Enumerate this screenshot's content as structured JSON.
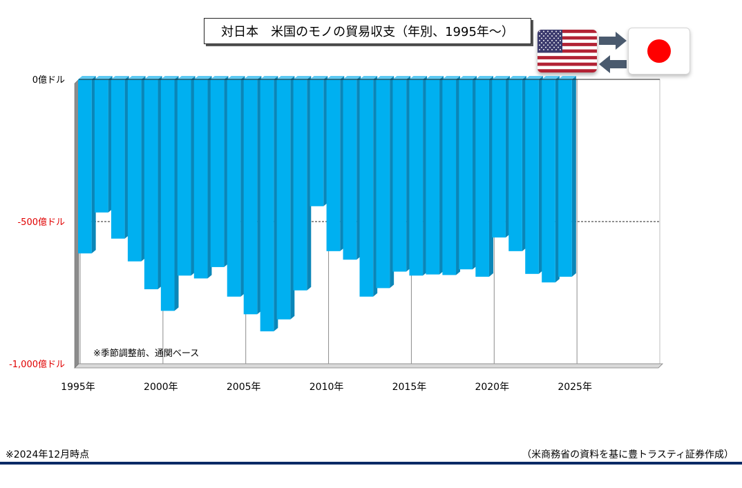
{
  "title": "対日本　米国のモノの貿易収支（年別、1995年～）",
  "chart_data": {
    "type": "bar",
    "title": "対日本　米国のモノの貿易収支（年別、1995年～）",
    "xlabel": "",
    "ylabel": "",
    "unit": "億ドル",
    "categories": [
      "1995",
      "1996",
      "1997",
      "1998",
      "1999",
      "2000",
      "2001",
      "2002",
      "2003",
      "2004",
      "2005",
      "2006",
      "2007",
      "2008",
      "2009",
      "2010",
      "2011",
      "2012",
      "2013",
      "2014",
      "2015",
      "2016",
      "2017",
      "2018",
      "2019",
      "2020",
      "2021",
      "2022",
      "2023",
      "2024"
    ],
    "values": [
      -612,
      -468,
      -560,
      -640,
      -738,
      -814,
      -690,
      -700,
      -660,
      -764,
      -826,
      -886,
      -844,
      -742,
      -446,
      -604,
      -634,
      -764,
      -734,
      -676,
      -690,
      -686,
      -688,
      -668,
      -694,
      -556,
      -604,
      -684,
      -714,
      -694
    ],
    "ylim": [
      -1000,
      0
    ],
    "xlim": [
      1995,
      2029
    ],
    "y_ticks": [
      {
        "value": 0,
        "label": "0億ドル",
        "color": "#000000"
      },
      {
        "value": -500,
        "label": "-500億ドル",
        "color": "#e00000"
      },
      {
        "value": -1000,
        "label": "-1,000億ドル",
        "color": "#e00000"
      }
    ],
    "x_ticks": [
      {
        "value": 1995,
        "label": "1995年"
      },
      {
        "value": 2000,
        "label": "2000年"
      },
      {
        "value": 2005,
        "label": "2005年"
      },
      {
        "value": 2010,
        "label": "2010年"
      },
      {
        "value": 2015,
        "label": "2015年"
      },
      {
        "value": 2020,
        "label": "2020年"
      },
      {
        "value": 2025,
        "label": "2025年"
      }
    ],
    "annotation": "※季節調整前、通関ベース",
    "bar_color": "#00b0f0",
    "bar_side_color": "#0a86b8",
    "reference_line": -500,
    "grid": false,
    "legend": "none"
  },
  "notes": {
    "left": "※2024年12月時点",
    "right": "（米商務省の資料を基に豊トラスティ証券作成）"
  },
  "colors": {
    "us_red": "#b22234",
    "us_blue": "#3c3b6e",
    "jp_red": "#ff0000",
    "arrow": "#4a5a6e",
    "bottom_rule": "#0a2a66"
  },
  "icons": [
    "us-flag-icon",
    "japan-flag-icon",
    "arrow-right-icon",
    "arrow-left-icon"
  ]
}
